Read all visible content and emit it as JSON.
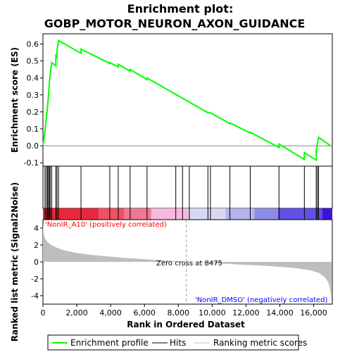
{
  "title_line1": "Enrichment plot:",
  "title_line2": "GOBP_MOTOR_NEURON_AXON_GUIDANCE",
  "top_ylabel": "Enrichment score (ES)",
  "bottom_ylabel": "Ranked list metric (Signal2Noise)",
  "xlabel": "Rank in Ordered Dataset",
  "pos_label": "'NonIR_A10' (positively correlated)",
  "neg_label": "'NonIR_DMSO' (negatively correlated)",
  "zero_cross_label": "Zero cross at 8475",
  "legend": {
    "profile": "Enrichment profile",
    "hits": "Hits",
    "ranking": "Ranking metric scores"
  },
  "colors": {
    "profile": "#00ff00",
    "pos": "#e8283c",
    "neg": "#3c28e6",
    "neg_text": "#0000ff",
    "pos_text": "#ff0000",
    "metric_fill": "#bebebe"
  },
  "chart_data": {
    "type": "line",
    "n_genes": 17100,
    "zero_cross": 8475,
    "es_axis": {
      "ylim": [
        -0.12,
        0.66
      ],
      "ticks": [
        "-0.1",
        "0.0",
        "0.1",
        "0.2",
        "0.3",
        "0.4",
        "0.5",
        "0.6"
      ],
      "tick_values": [
        -0.1,
        0.0,
        0.1,
        0.2,
        0.3,
        0.4,
        0.5,
        0.6
      ]
    },
    "metric_axis": {
      "ylim": [
        -5,
        5
      ],
      "ticks": [
        "4",
        "2",
        "0",
        "-2",
        "-4"
      ],
      "tick_values": [
        4,
        2,
        0,
        -2,
        -4
      ]
    },
    "x_axis": {
      "xlim": [
        0,
        17100
      ],
      "ticks": [
        "0",
        "2,000",
        "4,000",
        "6,000",
        "8,000",
        "10,000",
        "12,000",
        "14,000",
        "16,000"
      ],
      "tick_values": [
        0,
        2000,
        4000,
        6000,
        8000,
        10000,
        12000,
        14000,
        16000
      ]
    },
    "hits": [
      120,
      200,
      270,
      330,
      380,
      430,
      520,
      760,
      830,
      920,
      2250,
      3950,
      4450,
      5150,
      6150,
      7850,
      8250,
      8650,
      9750,
      9900,
      11050,
      12250,
      13950,
      15450,
      16150,
      16220,
      16290
    ],
    "es_profile": [
      [
        0,
        0.0
      ],
      [
        120,
        0.085
      ],
      [
        200,
        0.16
      ],
      [
        270,
        0.23
      ],
      [
        330,
        0.3
      ],
      [
        380,
        0.37
      ],
      [
        430,
        0.42
      ],
      [
        520,
        0.49
      ],
      [
        760,
        0.47
      ],
      [
        760,
        0.53
      ],
      [
        830,
        0.52
      ],
      [
        830,
        0.56
      ],
      [
        920,
        0.62
      ],
      [
        2250,
        0.545
      ],
      [
        2250,
        0.57
      ],
      [
        3950,
        0.485
      ],
      [
        3950,
        0.49
      ],
      [
        4450,
        0.465
      ],
      [
        4450,
        0.48
      ],
      [
        5150,
        0.44
      ],
      [
        5150,
        0.45
      ],
      [
        6150,
        0.39
      ],
      [
        6150,
        0.4
      ],
      [
        9750,
        0.195
      ],
      [
        9900,
        0.195
      ],
      [
        11050,
        0.13
      ],
      [
        11050,
        0.135
      ],
      [
        12250,
        0.075
      ],
      [
        12250,
        0.08
      ],
      [
        13950,
        -0.01
      ],
      [
        13950,
        0.01
      ],
      [
        15450,
        -0.08
      ],
      [
        15450,
        -0.04
      ],
      [
        16150,
        -0.085
      ],
      [
        16150,
        -0.03
      ],
      [
        16220,
        0.01
      ],
      [
        16290,
        0.05
      ],
      [
        17000,
        0.0
      ]
    ],
    "metric_profile": [
      [
        0,
        4.5
      ],
      [
        50,
        3.2
      ],
      [
        150,
        2.7
      ],
      [
        300,
        2.3
      ],
      [
        500,
        2.0
      ],
      [
        800,
        1.7
      ],
      [
        1200,
        1.4
      ],
      [
        2000,
        1.05
      ],
      [
        3000,
        0.8
      ],
      [
        4000,
        0.6
      ],
      [
        5000,
        0.45
      ],
      [
        6000,
        0.33
      ],
      [
        7000,
        0.2
      ],
      [
        8000,
        0.08
      ],
      [
        8475,
        0.0
      ],
      [
        9000,
        -0.05
      ],
      [
        10000,
        -0.15
      ],
      [
        11000,
        -0.25
      ],
      [
        12000,
        -0.35
      ],
      [
        13000,
        -0.45
      ],
      [
        14000,
        -0.58
      ],
      [
        15000,
        -0.75
      ],
      [
        15800,
        -1.0
      ],
      [
        16300,
        -1.3
      ],
      [
        16700,
        -1.9
      ],
      [
        16900,
        -2.6
      ],
      [
        17000,
        -3.6
      ],
      [
        17050,
        -4.6
      ]
    ],
    "colorbar_segments": [
      {
        "from": 0,
        "to": 3300,
        "color": "#e8283c"
      },
      {
        "from": 3300,
        "to": 4800,
        "color": "#ee5064"
      },
      {
        "from": 4800,
        "to": 6400,
        "color": "#f07890"
      },
      {
        "from": 6400,
        "to": 8600,
        "color": "#f8b8dc"
      },
      {
        "from": 8600,
        "to": 10800,
        "color": "#d8d8f4"
      },
      {
        "from": 10800,
        "to": 12500,
        "color": "#b4b4ee"
      },
      {
        "from": 12500,
        "to": 13900,
        "color": "#8c8ce8"
      },
      {
        "from": 13900,
        "to": 16500,
        "color": "#6050e4"
      },
      {
        "from": 16500,
        "to": 17100,
        "color": "#3c14d8"
      }
    ]
  }
}
